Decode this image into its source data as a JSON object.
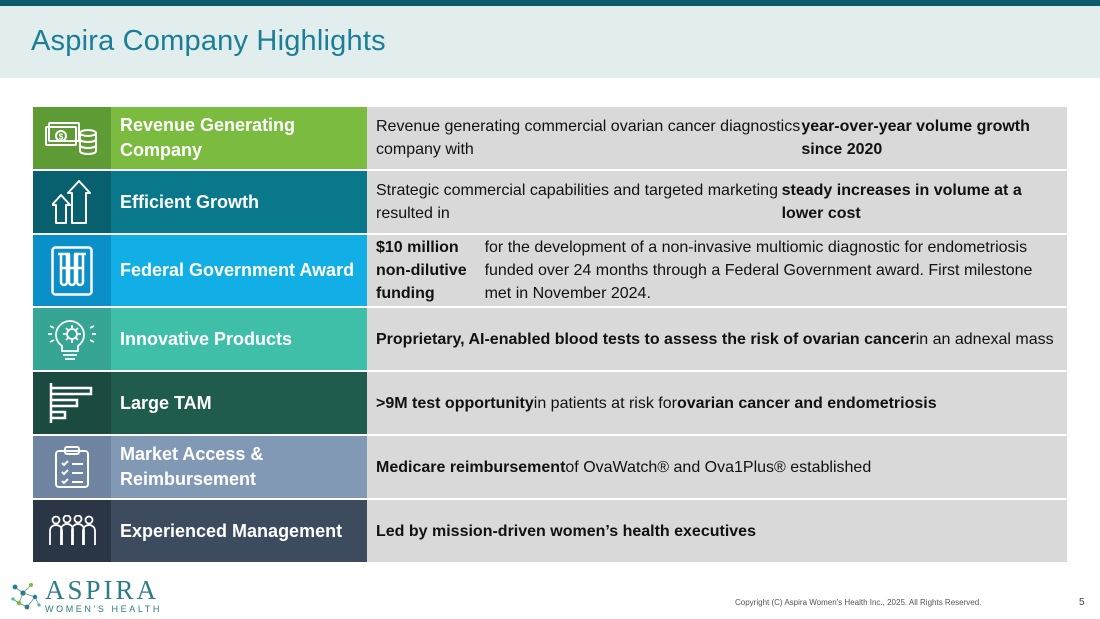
{
  "header": {
    "title": "Aspira Company Highlights"
  },
  "rows": [
    {
      "label": "Revenue Generating Company",
      "icon": "money-icon",
      "icon_color": "#5e9b35",
      "label_color": "#7bbb3f",
      "desc": [
        {
          "t": "Revenue generating commercial ovarian cancer diagnostics company with "
        },
        {
          "t": "year-over-year volume growth since 2020",
          "b": true
        }
      ]
    },
    {
      "label": "Efficient Growth",
      "icon": "growth-arrows-icon",
      "icon_color": "#08606e",
      "label_color": "#09788a",
      "desc": [
        {
          "t": "Strategic commercial capabilities and targeted marketing resulted in "
        },
        {
          "t": "steady increases in volume at a lower cost",
          "b": true
        }
      ]
    },
    {
      "label": "Federal Government Award",
      "icon": "test-tubes-icon",
      "icon_color": "#0b8fc8",
      "label_color": "#12aee6",
      "desc": [
        {
          "t": "$10 million non-dilutive funding",
          "b": true
        },
        {
          "t": " for the development of a non-invasive multiomic diagnostic for endometriosis funded over 24 months through a Federal Government award. First milestone met in November 2024."
        }
      ]
    },
    {
      "label": "Innovative Products",
      "icon": "lightbulb-gear-icon",
      "icon_color": "#36a593",
      "label_color": "#3fbfa8",
      "desc": [
        {
          "t": "Proprietary, AI-enabled blood tests to assess the risk of ovarian cancer",
          "b": true
        },
        {
          "t": " in an adnexal mass"
        }
      ]
    },
    {
      "label": "Large TAM",
      "icon": "bar-chart-icon",
      "icon_color": "#1a4a40",
      "label_color": "#1f5c4e",
      "desc": [
        {
          "t": ">9M test opportunity",
          "b": true
        },
        {
          "t": " in patients at risk for "
        },
        {
          "t": "ovarian cancer and endometriosis",
          "b": true
        }
      ]
    },
    {
      "label": "Market Access & Reimbursement",
      "icon": "clipboard-checklist-icon",
      "icon_color": "#6e84a0",
      "label_color": "#8299b5",
      "desc": [
        {
          "t": "Medicare reimbursement",
          "b": true
        },
        {
          "t": " of OvaWatch® and Ova1Plus® established"
        }
      ]
    },
    {
      "label": "Experienced Management",
      "icon": "team-people-icon",
      "icon_color": "#2a3646",
      "label_color": "#3c4b5e",
      "desc": [
        {
          "t": "Led by mission-driven women’s health executives",
          "b": true
        }
      ]
    }
  ],
  "footer": {
    "logo_main": "ASPIRA",
    "logo_sub": "WOMEN'S HEALTH",
    "copyright": "Copyright (C) Aspira Women's Health Inc., 2025. All Rights Reserved.",
    "page_number": "5"
  }
}
